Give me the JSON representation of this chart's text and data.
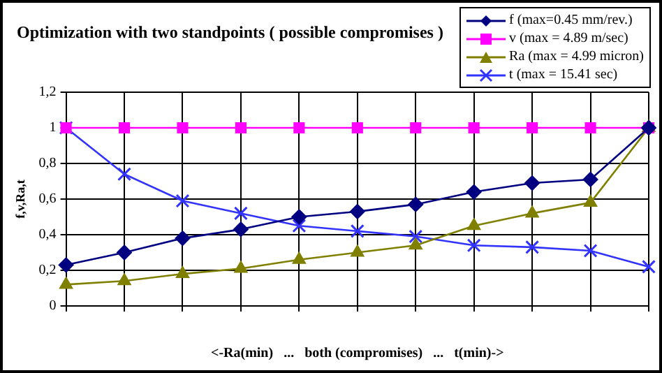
{
  "chart_data": {
    "type": "line",
    "title": "Optimization with two standpoints ( possible compromises )",
    "xlabel": "<-Ra(min)   ...   both (compromises)   ...   t(min)->",
    "ylabel": "f,v,Ra,t",
    "categories": [
      null,
      null,
      null,
      null,
      null,
      null,
      null,
      null,
      null,
      null,
      null
    ],
    "ylim": [
      0,
      1.2
    ],
    "yticks": [
      {
        "value": 0,
        "label": "0"
      },
      {
        "value": 0.2,
        "label": "0,2"
      },
      {
        "value": 0.4,
        "label": "0,4"
      },
      {
        "value": 0.6,
        "label": "0,6"
      },
      {
        "value": 0.8,
        "label": "0,8"
      },
      {
        "value": 1,
        "label": "1"
      },
      {
        "value": 1.2,
        "label": "1,2"
      }
    ],
    "grid": true,
    "legend": "top right",
    "line_style": "solid",
    "series": [
      {
        "name": "f (max=0.45 mm/rev.)",
        "color": "#000080",
        "marker": "diamond",
        "values": [
          0.23,
          0.3,
          0.38,
          0.43,
          0.5,
          0.53,
          0.57,
          0.64,
          0.69,
          0.71,
          1.0
        ]
      },
      {
        "name": "v (max = 4.89 m/sec)",
        "color": "#ff00ff",
        "marker": "square",
        "values": [
          1,
          1,
          1,
          1,
          1,
          1,
          1,
          1,
          1,
          1,
          1
        ]
      },
      {
        "name": "Ra (max = 4.99 micron)",
        "color": "#808000",
        "marker": "triangle",
        "values": [
          0.12,
          0.14,
          0.18,
          0.21,
          0.26,
          0.3,
          0.34,
          0.45,
          0.52,
          0.58,
          1.0
        ]
      },
      {
        "name": "t (max = 15.41 sec)",
        "color": "#3333ff",
        "marker": "cross",
        "values": [
          1.0,
          0.74,
          0.59,
          0.52,
          0.45,
          0.42,
          0.39,
          0.34,
          0.33,
          0.31,
          0.22
        ]
      }
    ]
  }
}
